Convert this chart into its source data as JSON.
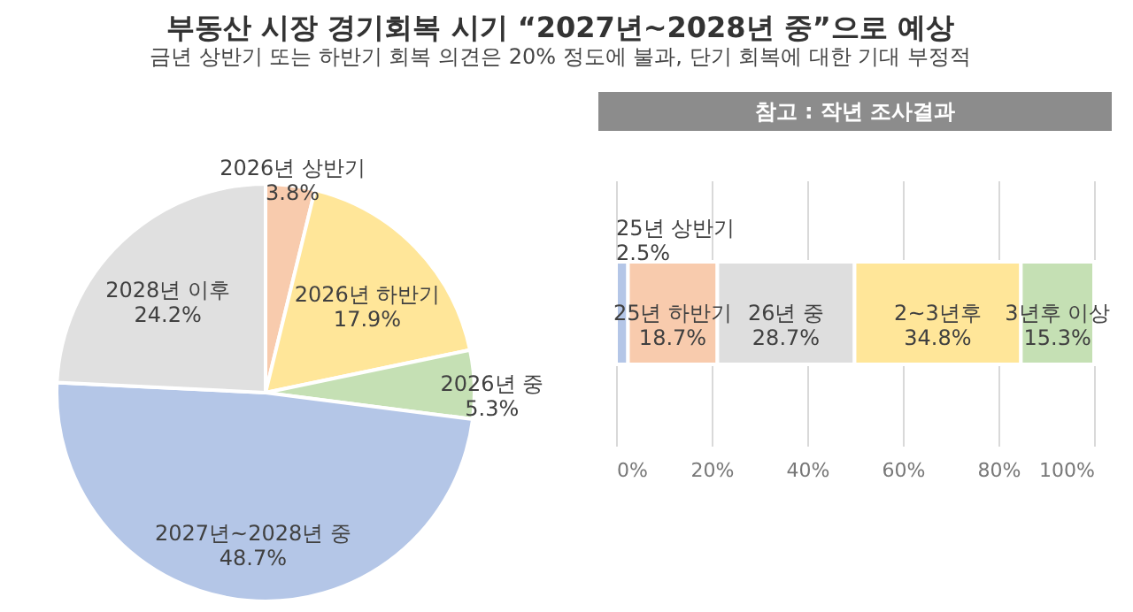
{
  "chart_data": [
    {
      "type": "pie",
      "title": "부동산 시장 경기회복 시기 “2027년~2028년 중”으로 예상",
      "subtitle": "금년 상반기 또는 하반기 회복 의견은 20% 정도에 불과, 단기 회복에 대한 기대 부정적",
      "categories": [
        "2026년 상반기",
        "2026년 하반기",
        "2026년 중",
        "2027년~2028년 중",
        "2028년 이후"
      ],
      "values": [
        3.8,
        17.9,
        5.3,
        48.7,
        24.2
      ],
      "colors": [
        "#f8cbad",
        "#ffe699",
        "#c5e0b4",
        "#b4c6e7",
        "#e0e0e0"
      ],
      "value_labels": [
        "3.8%",
        "17.9%",
        "5.3%",
        "48.7%",
        "24.2%"
      ]
    },
    {
      "type": "bar",
      "title": "참고 : 작년 조사결과",
      "orientation": "horizontal",
      "stacked": true,
      "categories": [
        null
      ],
      "series": [
        {
          "name": "25년 상반기",
          "color": "#b4c6e7",
          "values": [
            2.5
          ],
          "value_labels": [
            "2.5%"
          ]
        },
        {
          "name": "25년 하반기",
          "color": "#f8cbad",
          "values": [
            18.7
          ],
          "value_labels": [
            "18.7%"
          ]
        },
        {
          "name": "26년 중",
          "color": "#dedede",
          "values": [
            28.7
          ],
          "value_labels": [
            "28.7%"
          ]
        },
        {
          "name": "2~3년후",
          "color": "#ffe699",
          "values": [
            34.8
          ],
          "value_labels": [
            "34.8%"
          ]
        },
        {
          "name": "3년후 이상",
          "color": "#c5e0b4",
          "values": [
            15.3
          ],
          "value_labels": [
            "15.3%"
          ]
        }
      ],
      "xlim": [
        0,
        100
      ],
      "xticks": [
        {
          "value": 0,
          "label": "0%"
        },
        {
          "value": 20,
          "label": "20%"
        },
        {
          "value": 40,
          "label": "40%"
        },
        {
          "value": 60,
          "label": "60%"
        },
        {
          "value": 80,
          "label": "80%"
        },
        {
          "value": 100,
          "label": "100%"
        }
      ],
      "grid": "x"
    }
  ]
}
